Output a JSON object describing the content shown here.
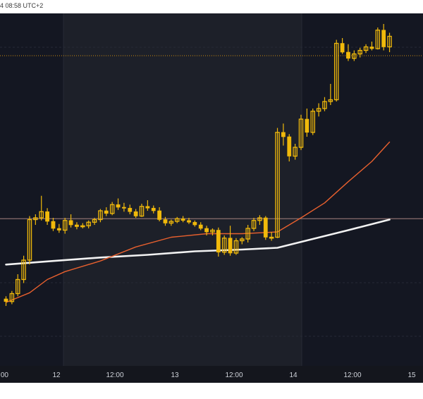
{
  "header": {
    "timestamp": "4 08:58 UTC+2"
  },
  "colors": {
    "background": "#141722",
    "session_highlight": "#1d2029",
    "candle_up": "#f0b90b",
    "candle_down": "#f0b90b",
    "ma_slow": "#f2f2f2",
    "ma_fast": "#e8602e",
    "price_line": "#8a6e6e",
    "dotted_level": "#c98a10"
  },
  "chart_data": {
    "type": "candlestick",
    "title": "",
    "xlabel": "",
    "ylabel": "",
    "grid": true,
    "legend": "none",
    "x_tick_labels": [
      ":00",
      "12",
      "12:00",
      "13",
      "12:00",
      "14",
      "12:00",
      "15"
    ],
    "ylim": [
      90,
      130
    ],
    "reference_lines": [
      {
        "style": "dotted",
        "value": 125.2
      },
      {
        "style": "solid",
        "value": 106.7
      }
    ],
    "candles": [
      [
        97.6,
        97.9,
        96.8,
        97.3
      ],
      [
        97.3,
        98.5,
        97.0,
        98.2
      ],
      [
        98.2,
        100.4,
        97.9,
        99.8
      ],
      [
        99.8,
        102.5,
        99.4,
        102.0
      ],
      [
        102.0,
        107.0,
        101.5,
        106.6
      ],
      [
        106.6,
        107.2,
        106.0,
        106.8
      ],
      [
        106.8,
        109.3,
        106.5,
        107.5
      ],
      [
        107.5,
        107.9,
        106.0,
        106.4
      ],
      [
        106.4,
        106.8,
        105.3,
        105.6
      ],
      [
        105.6,
        106.1,
        105.1,
        105.4
      ],
      [
        105.4,
        106.8,
        105.0,
        106.5
      ],
      [
        106.5,
        107.2,
        105.7,
        106.0
      ],
      [
        106.0,
        106.3,
        105.5,
        105.8
      ],
      [
        105.8,
        106.2,
        105.6,
        105.9
      ],
      [
        105.9,
        106.5,
        105.6,
        106.3
      ],
      [
        106.3,
        106.8,
        106.0,
        106.6
      ],
      [
        106.6,
        107.8,
        106.3,
        107.6
      ],
      [
        107.6,
        108.0,
        107.0,
        107.3
      ],
      [
        107.3,
        108.6,
        107.1,
        108.3
      ],
      [
        108.3,
        109.0,
        107.7,
        108.0
      ],
      [
        108.0,
        108.5,
        107.5,
        107.9
      ],
      [
        107.9,
        108.3,
        107.2,
        107.5
      ],
      [
        107.5,
        107.8,
        106.8,
        107.0
      ],
      [
        107.0,
        108.4,
        106.9,
        108.1
      ],
      [
        108.1,
        108.8,
        107.6,
        107.9
      ],
      [
        107.9,
        108.2,
        107.3,
        107.6
      ],
      [
        107.6,
        108.0,
        106.4,
        106.6
      ],
      [
        106.6,
        106.9,
        105.9,
        106.2
      ],
      [
        106.2,
        106.6,
        105.9,
        106.4
      ],
      [
        106.4,
        106.9,
        106.2,
        106.7
      ],
      [
        106.7,
        107.0,
        106.3,
        106.5
      ],
      [
        106.5,
        106.8,
        106.1,
        106.3
      ],
      [
        106.3,
        106.5,
        105.8,
        106.0
      ],
      [
        106.0,
        106.3,
        105.4,
        105.6
      ],
      [
        105.6,
        105.9,
        104.8,
        105.2
      ],
      [
        105.2,
        105.6,
        104.8,
        105.4
      ],
      [
        105.4,
        105.7,
        102.4,
        102.9
      ],
      [
        102.9,
        104.8,
        102.6,
        104.5
      ],
      [
        104.5,
        105.9,
        102.5,
        102.8
      ],
      [
        102.8,
        104.5,
        102.6,
        104.2
      ],
      [
        104.2,
        104.6,
        103.8,
        104.4
      ],
      [
        104.4,
        106.0,
        104.0,
        105.6
      ],
      [
        105.6,
        106.8,
        105.3,
        106.5
      ],
      [
        106.5,
        107.1,
        106.0,
        106.8
      ],
      [
        106.8,
        107.0,
        104.3,
        104.6
      ],
      [
        104.6,
        105.2,
        104.2,
        104.6
      ],
      [
        104.6,
        117.0,
        104.5,
        116.5
      ],
      [
        116.5,
        117.5,
        115.0,
        116.0
      ],
      [
        116.0,
        116.3,
        113.2,
        113.8
      ],
      [
        113.8,
        115.2,
        113.4,
        114.8
      ],
      [
        114.8,
        118.5,
        114.5,
        118.0
      ],
      [
        118.0,
        119.2,
        116.0,
        116.5
      ],
      [
        116.5,
        119.2,
        116.2,
        118.9
      ],
      [
        118.9,
        119.8,
        118.3,
        119.2
      ],
      [
        119.2,
        120.5,
        118.9,
        120.0
      ],
      [
        120.0,
        122.0,
        119.6,
        120.2
      ],
      [
        120.2,
        127.0,
        120.0,
        126.6
      ],
      [
        126.6,
        127.2,
        125.4,
        125.6
      ],
      [
        125.6,
        126.5,
        124.6,
        124.9
      ],
      [
        124.9,
        125.8,
        124.6,
        125.4
      ],
      [
        125.4,
        126.1,
        125.0,
        125.8
      ],
      [
        125.8,
        126.5,
        125.5,
        126.2
      ],
      [
        126.2,
        126.8,
        125.8,
        126.0
      ],
      [
        126.0,
        128.4,
        125.9,
        128.1
      ],
      [
        128.1,
        128.8,
        125.8,
        126.2
      ],
      [
        126.2,
        127.8,
        125.6,
        127.4
      ]
    ],
    "series": [
      {
        "type": "line",
        "color": "#f2f2f2",
        "points": [
          [
            0,
            101.5
          ],
          [
            8,
            101.9
          ],
          [
            16,
            102.3
          ],
          [
            24,
            102.6
          ],
          [
            32,
            103.0
          ],
          [
            40,
            103.2
          ],
          [
            46,
            103.4
          ],
          [
            52,
            104.4
          ],
          [
            58,
            105.4
          ],
          [
            65,
            106.6
          ]
        ]
      },
      {
        "type": "line",
        "color": "#e8602e",
        "points": [
          [
            0,
            97.2
          ],
          [
            4,
            98.3
          ],
          [
            7,
            99.8
          ],
          [
            10,
            100.7
          ],
          [
            16,
            101.9
          ],
          [
            22,
            103.5
          ],
          [
            28,
            104.6
          ],
          [
            34,
            105.0
          ],
          [
            40,
            105.0
          ],
          [
            46,
            105.2
          ],
          [
            50,
            106.8
          ],
          [
            54,
            108.5
          ],
          [
            58,
            110.9
          ],
          [
            62,
            113.2
          ],
          [
            65,
            115.4
          ]
        ]
      }
    ]
  }
}
